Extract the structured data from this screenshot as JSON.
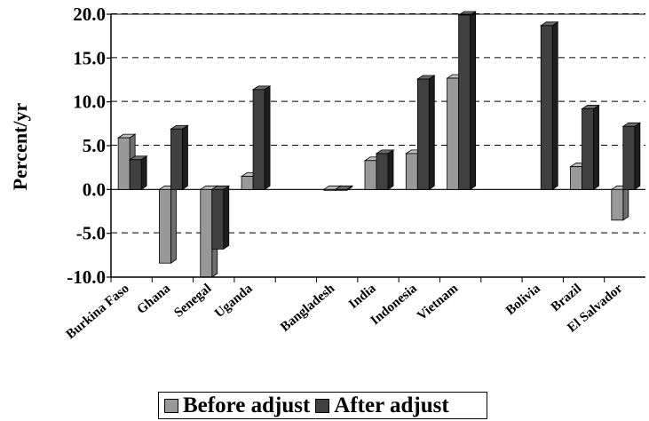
{
  "chart_data": {
    "type": "bar",
    "title": "",
    "xlabel": "",
    "ylabel": "Percent/yr",
    "ylim": [
      -10.0,
      20.0
    ],
    "yticks": [
      "20.0",
      "15.0",
      "10.0",
      "5.0",
      "0.0",
      "-5.0",
      "-10.0"
    ],
    "grid": true,
    "legend_position": "bottom",
    "categories": [
      "Burkina Faso",
      "Ghana",
      "Senegal",
      "Uganda",
      "Bangladesh",
      "India",
      "Indonesia",
      "Vietnam",
      "Bolivia",
      "Brazil",
      "El Salvador"
    ],
    "series": [
      {
        "name": "Before adjust",
        "color": "#999999",
        "values": [
          5.9,
          -8.4,
          -10.0,
          1.5,
          -0.1,
          3.3,
          4.1,
          12.7,
          null,
          2.6,
          -3.5
        ]
      },
      {
        "name": "After adjust",
        "color": "#404040",
        "values": [
          3.4,
          6.9,
          -6.8,
          11.4,
          -0.1,
          4.1,
          12.6,
          19.9,
          18.7,
          9.2,
          7.2
        ]
      }
    ],
    "gaps_after": [
      "Uganda",
      "Vietnam"
    ]
  }
}
